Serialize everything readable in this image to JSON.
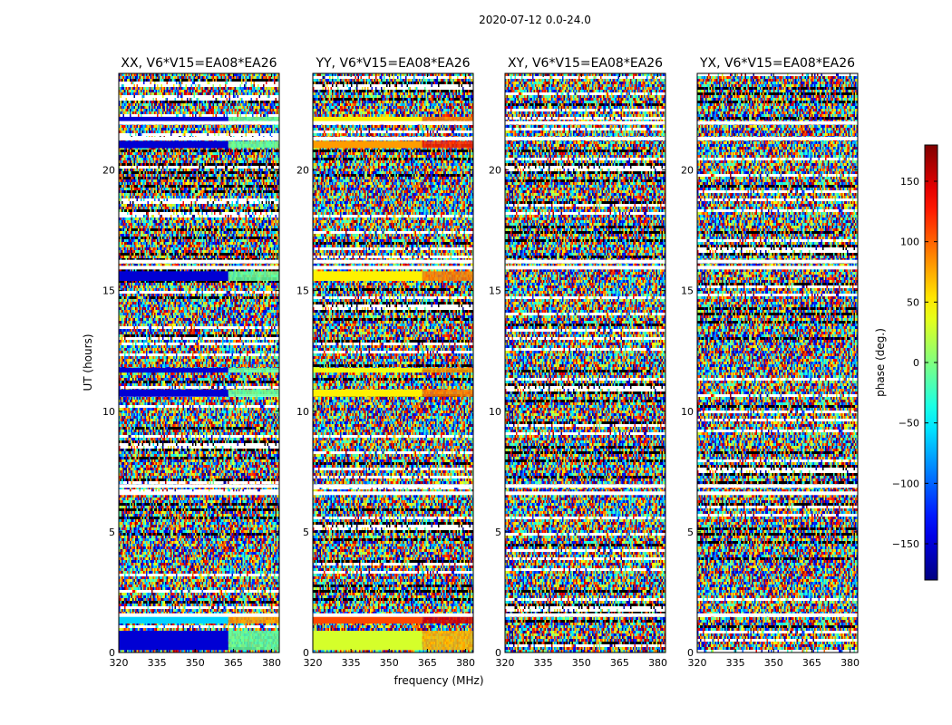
{
  "chart_data": {
    "type": "heatmap",
    "title": "2020-07-12 0.0-24.0",
    "xlabel": "frequency (MHz)",
    "ylabel": "UT (hours)",
    "xlim": [
      320,
      383
    ],
    "ylim": [
      0,
      24
    ],
    "x_ticks": [
      320,
      335,
      350,
      365,
      380
    ],
    "y_ticks": [
      0,
      5,
      10,
      15,
      20
    ],
    "panels": [
      {
        "title": "XX, V6*V15=EA08*EA26",
        "correlation": "XX"
      },
      {
        "title": "YY, V6*V15=EA08*EA26",
        "correlation": "YY"
      },
      {
        "title": "XY, V6*V15=EA08*EA26",
        "correlation": "XY"
      },
      {
        "title": "YX, V6*V15=EA08*EA26",
        "correlation": "YX"
      }
    ],
    "coherent_phase_bands": [
      {
        "ut": [
          0.1,
          0.9
        ],
        "XX": -150,
        "YY": 30,
        "XY": null,
        "YX": null
      },
      {
        "ut": [
          1.2,
          1.5
        ],
        "XX": -60,
        "YY": 110,
        "XY": null,
        "YX": null
      },
      {
        "ut": [
          10.6,
          10.9
        ],
        "XX": -150,
        "YY": 50,
        "XY": null,
        "YX": null
      },
      {
        "ut": [
          11.6,
          11.8
        ],
        "XX": -150,
        "YY": 40,
        "XY": null,
        "YX": null
      },
      {
        "ut": [
          15.4,
          15.8
        ],
        "XX": -150,
        "YY": 50,
        "XY": null,
        "YX": null
      },
      {
        "ut": [
          20.9,
          21.2
        ],
        "XX": -150,
        "YY": 80,
        "XY": null,
        "YX": null
      },
      {
        "ut": [
          22.0,
          22.2
        ],
        "XX": -150,
        "YY": 50,
        "XY": null,
        "YX": null
      }
    ],
    "flagged_gaps_ut": [
      1.55,
      6.6,
      6.9,
      15.95,
      16.2,
      21.3,
      21.95
    ],
    "colorbar": {
      "label": "phase (deg.)",
      "range": [
        -180,
        180
      ],
      "ticks": [
        -150,
        -100,
        -50,
        0,
        50,
        100,
        150
      ],
      "tick_labels": [
        "−150",
        "−100",
        "−50",
        "0",
        "50",
        "100",
        "150"
      ],
      "colormap": "jet"
    }
  }
}
